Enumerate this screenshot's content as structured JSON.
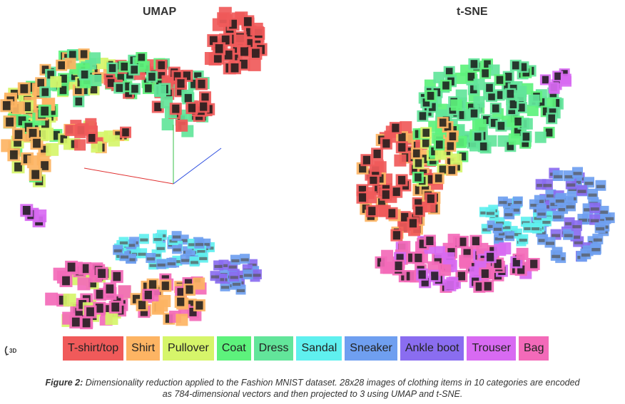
{
  "panels": {
    "umap_title": "UMAP",
    "tsne_title": "t-SNE"
  },
  "legend": [
    {
      "label": "T-shirt/top",
      "color": "#f05a5a"
    },
    {
      "label": "Shirt",
      "color": "#fdb463"
    },
    {
      "label": "Pullover",
      "color": "#d6f56a"
    },
    {
      "label": "Coat",
      "color": "#5df27c"
    },
    {
      "label": "Dress",
      "color": "#62e59a"
    },
    {
      "label": "Sandal",
      "color": "#5ff0ef"
    },
    {
      "label": "Sneaker",
      "color": "#6f9ff0"
    },
    {
      "label": "Ankle boot",
      "color": "#8a6df0"
    },
    {
      "label": "Trouser",
      "color": "#d86af2"
    },
    {
      "label": "Bag",
      "color": "#f36ab9"
    }
  ],
  "controls": {
    "view_toggle_label": "3D",
    "view_toggle_icon": "rotate-3d-icon"
  },
  "caption": {
    "lead": "Figure 2:",
    "text": " Dimensionality reduction applied to the Fashion MNIST dataset. 28x28 images of clothing items in 10 categories are encoded as 784-dimensional vectors and then projected to 3 using UMAP and t-SNE."
  }
}
